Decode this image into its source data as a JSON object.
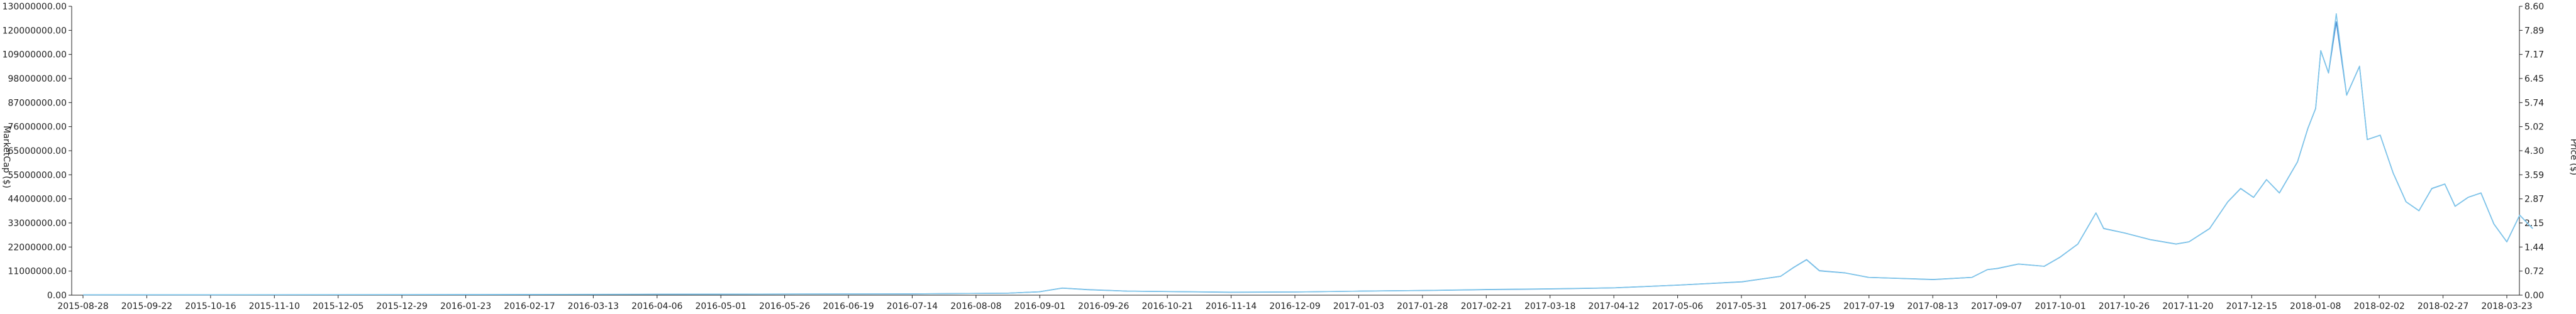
{
  "chart_data": {
    "type": "line",
    "x_tick_labels": [
      "2015-08-28",
      "2015-09-22",
      "2015-10-16",
      "2015-11-10",
      "2015-12-05",
      "2015-12-29",
      "2016-01-23",
      "2016-02-17",
      "2016-03-13",
      "2016-04-06",
      "2016-05-01",
      "2016-05-26",
      "2016-06-19",
      "2016-07-14",
      "2016-08-08",
      "2016-09-01",
      "2016-09-26",
      "2016-10-21",
      "2016-11-14",
      "2016-12-09",
      "2017-01-03",
      "2017-01-28",
      "2017-02-21",
      "2017-03-18",
      "2017-04-12",
      "2017-05-06",
      "2017-05-31",
      "2017-06-25",
      "2017-07-19",
      "2017-08-13",
      "2017-09-07",
      "2017-10-01",
      "2017-10-26",
      "2017-11-20",
      "2017-12-15",
      "2018-01-08",
      "2018-02-02",
      "2018-02-27",
      "2018-03-23"
    ],
    "left_axis": {
      "label": "MarketCap ($)",
      "ylim": [
        0,
        130000000
      ],
      "ticks": [
        "0.00",
        "11000000.00",
        "22000000.00",
        "33000000.00",
        "44000000.00",
        "55000000.00",
        "65000000.00",
        "76000000.00",
        "87000000.00",
        "98000000.00",
        "109000000.00",
        "120000000.00",
        "130000000.00"
      ]
    },
    "right_axis": {
      "label": "Price ($)",
      "ylim": [
        0,
        8.6
      ],
      "ticks": [
        "0.00",
        "0.72",
        "1.44",
        "2.15",
        "2.87",
        "3.59",
        "4.30",
        "5.02",
        "5.74",
        "6.45",
        "7.17",
        "7.89",
        "8.60"
      ]
    },
    "series": [
      {
        "axis": "left",
        "color": "#4a8fd4",
        "points": [
          [
            "2015-08-28",
            150000
          ],
          [
            "2015-10-16",
            180000
          ],
          [
            "2016-01-23",
            250000
          ],
          [
            "2016-04-06",
            400000
          ],
          [
            "2016-07-14",
            600000
          ],
          [
            "2016-08-20",
            900000
          ],
          [
            "2016-09-01",
            1500000
          ],
          [
            "2016-09-10",
            3200000
          ],
          [
            "2016-09-20",
            2500000
          ],
          [
            "2016-10-05",
            1800000
          ],
          [
            "2016-11-14",
            1300000
          ],
          [
            "2016-12-09",
            1400000
          ],
          [
            "2017-01-03",
            1800000
          ],
          [
            "2017-01-28",
            2100000
          ],
          [
            "2017-02-21",
            2500000
          ],
          [
            "2017-03-18",
            2800000
          ],
          [
            "2017-04-12",
            3300000
          ],
          [
            "2017-05-06",
            4500000
          ],
          [
            "2017-05-31",
            6000000
          ],
          [
            "2017-06-15",
            8500000
          ],
          [
            "2017-06-20",
            12500000
          ],
          [
            "2017-06-25",
            16000000
          ],
          [
            "2017-06-30",
            11000000
          ],
          [
            "2017-07-10",
            10000000
          ],
          [
            "2017-07-19",
            8000000
          ],
          [
            "2017-08-01",
            7500000
          ],
          [
            "2017-08-13",
            7000000
          ],
          [
            "2017-08-28",
            8000000
          ],
          [
            "2017-09-03",
            11500000
          ],
          [
            "2017-09-07",
            12000000
          ],
          [
            "2017-09-15",
            14000000
          ],
          [
            "2017-09-25",
            13000000
          ],
          [
            "2017-10-01",
            17000000
          ],
          [
            "2017-10-08",
            23000000
          ],
          [
            "2017-10-12",
            31000000
          ],
          [
            "2017-10-15",
            37000000
          ],
          [
            "2017-10-18",
            30000000
          ],
          [
            "2017-10-26",
            28000000
          ],
          [
            "2017-11-05",
            25000000
          ],
          [
            "2017-11-15",
            23000000
          ],
          [
            "2017-11-20",
            24000000
          ],
          [
            "2017-11-28",
            30000000
          ],
          [
            "2017-12-05",
            42000000
          ],
          [
            "2017-12-10",
            48000000
          ],
          [
            "2017-12-15",
            44000000
          ],
          [
            "2017-12-20",
            52000000
          ],
          [
            "2017-12-25",
            46000000
          ],
          [
            "2018-01-01",
            60000000
          ],
          [
            "2018-01-05",
            75000000
          ],
          [
            "2018-01-08",
            84000000
          ],
          [
            "2018-01-10",
            110000000
          ],
          [
            "2018-01-13",
            100000000
          ],
          [
            "2018-01-16",
            123000000
          ],
          [
            "2018-01-20",
            90000000
          ],
          [
            "2018-01-25",
            103000000
          ],
          [
            "2018-01-28",
            70000000
          ],
          [
            "2018-02-02",
            72000000
          ],
          [
            "2018-02-07",
            55000000
          ],
          [
            "2018-02-12",
            42000000
          ],
          [
            "2018-02-17",
            38000000
          ],
          [
            "2018-02-22",
            48000000
          ],
          [
            "2018-02-27",
            50000000
          ],
          [
            "2018-03-03",
            40000000
          ],
          [
            "2018-03-08",
            44000000
          ],
          [
            "2018-03-13",
            46000000
          ],
          [
            "2018-03-18",
            32000000
          ],
          [
            "2018-03-23",
            24000000
          ],
          [
            "2018-03-28",
            36000000
          ],
          [
            "2018-04-02",
            30000000
          ]
        ]
      },
      {
        "axis": "right",
        "color": "#7fc6ea",
        "points": [
          [
            "2015-08-28",
            0.012
          ],
          [
            "2015-10-16",
            0.013
          ],
          [
            "2016-01-23",
            0.017
          ],
          [
            "2016-04-06",
            0.027
          ],
          [
            "2016-07-14",
            0.04
          ],
          [
            "2016-08-20",
            0.06
          ],
          [
            "2016-09-01",
            0.1
          ],
          [
            "2016-09-10",
            0.21
          ],
          [
            "2016-09-20",
            0.16
          ],
          [
            "2016-10-05",
            0.12
          ],
          [
            "2016-11-14",
            0.09
          ],
          [
            "2016-12-09",
            0.095
          ],
          [
            "2017-01-03",
            0.12
          ],
          [
            "2017-01-28",
            0.14
          ],
          [
            "2017-02-21",
            0.17
          ],
          [
            "2017-03-18",
            0.19
          ],
          [
            "2017-04-12",
            0.22
          ],
          [
            "2017-05-06",
            0.3
          ],
          [
            "2017-05-31",
            0.4
          ],
          [
            "2017-06-15",
            0.56
          ],
          [
            "2017-06-20",
            0.82
          ],
          [
            "2017-06-25",
            1.05
          ],
          [
            "2017-06-30",
            0.72
          ],
          [
            "2017-07-10",
            0.66
          ],
          [
            "2017-07-19",
            0.53
          ],
          [
            "2017-08-01",
            0.5
          ],
          [
            "2017-08-13",
            0.47
          ],
          [
            "2017-08-28",
            0.53
          ],
          [
            "2017-09-03",
            0.76
          ],
          [
            "2017-09-07",
            0.8
          ],
          [
            "2017-09-15",
            0.93
          ],
          [
            "2017-09-25",
            0.86
          ],
          [
            "2017-10-01",
            1.13
          ],
          [
            "2017-10-08",
            1.52
          ],
          [
            "2017-10-12",
            2.05
          ],
          [
            "2017-10-15",
            2.45
          ],
          [
            "2017-10-18",
            1.98
          ],
          [
            "2017-10-26",
            1.85
          ],
          [
            "2017-11-05",
            1.65
          ],
          [
            "2017-11-15",
            1.52
          ],
          [
            "2017-11-20",
            1.59
          ],
          [
            "2017-11-28",
            1.98
          ],
          [
            "2017-12-05",
            2.78
          ],
          [
            "2017-12-10",
            3.18
          ],
          [
            "2017-12-15",
            2.91
          ],
          [
            "2017-12-20",
            3.44
          ],
          [
            "2017-12-25",
            3.04
          ],
          [
            "2018-01-01",
            3.97
          ],
          [
            "2018-01-05",
            4.96
          ],
          [
            "2018-01-08",
            5.56
          ],
          [
            "2018-01-10",
            7.28
          ],
          [
            "2018-01-13",
            6.62
          ],
          [
            "2018-01-16",
            8.38
          ],
          [
            "2018-01-20",
            5.95
          ],
          [
            "2018-01-25",
            6.81
          ],
          [
            "2018-01-28",
            4.63
          ],
          [
            "2018-02-02",
            4.76
          ],
          [
            "2018-02-07",
            3.64
          ],
          [
            "2018-02-12",
            2.78
          ],
          [
            "2018-02-17",
            2.51
          ],
          [
            "2018-02-22",
            3.18
          ],
          [
            "2018-02-27",
            3.31
          ],
          [
            "2018-03-03",
            2.65
          ],
          [
            "2018-03-08",
            2.91
          ],
          [
            "2018-03-13",
            3.04
          ],
          [
            "2018-03-18",
            2.12
          ],
          [
            "2018-03-23",
            1.59
          ],
          [
            "2018-03-28",
            2.38
          ],
          [
            "2018-04-02",
            1.98
          ]
        ]
      }
    ]
  }
}
